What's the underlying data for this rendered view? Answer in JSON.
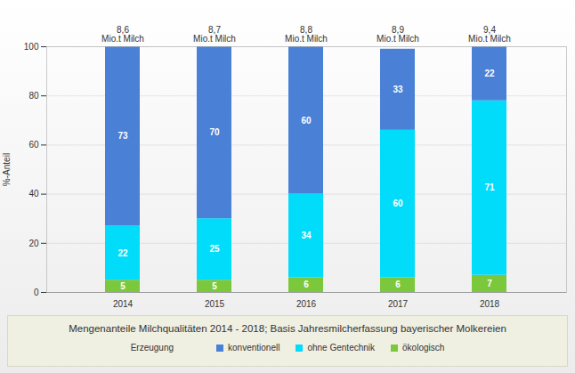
{
  "chart_data": {
    "type": "bar",
    "title": "Mengenanteile Milchqualitäten 2014 - 2018; Basis Jahresmilcherfassung bayerischer Molkereien",
    "y_label": "%-Anteil",
    "categories": [
      "2014",
      "2015",
      "2016",
      "2017",
      "2018"
    ],
    "series": [
      {
        "name": "konventionell",
        "color": "#4a80d6",
        "values": [
          73,
          70,
          60,
          33,
          22
        ]
      },
      {
        "name": "ohne Gentechnik",
        "color": "#00dcfa",
        "values": [
          22,
          25,
          34,
          60,
          71
        ]
      },
      {
        "name": "ökologisch",
        "color": "#7cc83c",
        "values": [
          5,
          5,
          6,
          6,
          7
        ]
      }
    ],
    "annotations": [
      {
        "x": "2014",
        "text": "8,6 Mio.t Milch"
      },
      {
        "x": "2015",
        "text": "8,7 Mio.t Milch"
      },
      {
        "x": "2016",
        "text": "8,8 Mio.t Milch"
      },
      {
        "x": "2017",
        "text": "8,9 Mio.t Milch"
      },
      {
        "x": "2018",
        "text": "9,4 Mio.t Milch"
      }
    ],
    "legend_title": "Erzeugung",
    "legend": "bottom",
    "ylim": [
      0,
      100
    ],
    "yticks": [
      0,
      20,
      40,
      60,
      80,
      100
    ],
    "grid": true,
    "stacked": true,
    "data_labels": true
  }
}
